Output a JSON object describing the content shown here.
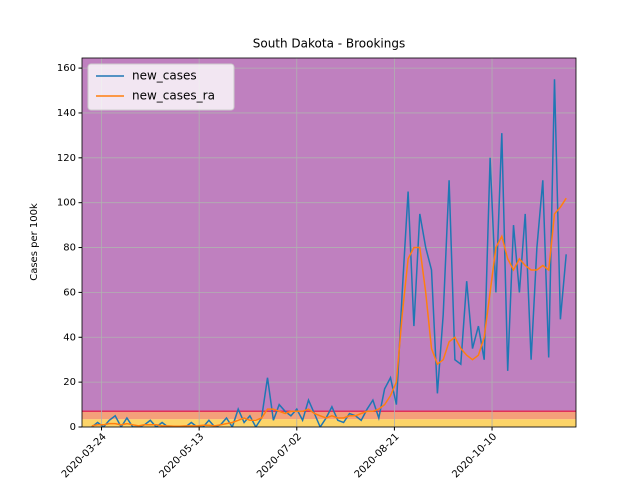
{
  "chart_data": {
    "type": "line",
    "title": "South Dakota - Brookings",
    "ylabel": "Cases per 100k",
    "x": [
      "2020-03-19",
      "2020-03-22",
      "2020-03-25",
      "2020-03-28",
      "2020-03-31",
      "2020-04-03",
      "2020-04-06",
      "2020-04-09",
      "2020-04-12",
      "2020-04-15",
      "2020-04-18",
      "2020-04-21",
      "2020-04-24",
      "2020-04-27",
      "2020-04-30",
      "2020-05-03",
      "2020-05-06",
      "2020-05-09",
      "2020-05-12",
      "2020-05-15",
      "2020-05-18",
      "2020-05-21",
      "2020-05-24",
      "2020-05-27",
      "2020-05-30",
      "2020-06-02",
      "2020-06-05",
      "2020-06-08",
      "2020-06-11",
      "2020-06-14",
      "2020-06-17",
      "2020-06-20",
      "2020-06-23",
      "2020-06-26",
      "2020-06-29",
      "2020-07-02",
      "2020-07-05",
      "2020-07-08",
      "2020-07-11",
      "2020-07-14",
      "2020-07-17",
      "2020-07-20",
      "2020-07-23",
      "2020-07-26",
      "2020-07-29",
      "2020-08-01",
      "2020-08-04",
      "2020-08-07",
      "2020-08-10",
      "2020-08-13",
      "2020-08-16",
      "2020-08-19",
      "2020-08-22",
      "2020-08-25",
      "2020-08-28",
      "2020-08-31",
      "2020-09-03",
      "2020-09-06",
      "2020-09-09",
      "2020-09-12",
      "2020-09-15",
      "2020-09-18",
      "2020-09-21",
      "2020-09-24",
      "2020-09-27",
      "2020-09-30",
      "2020-10-03",
      "2020-10-06",
      "2020-10-09",
      "2020-10-12",
      "2020-10-15",
      "2020-10-18",
      "2020-10-21",
      "2020-10-24",
      "2020-10-27",
      "2020-10-30",
      "2020-11-02",
      "2020-11-05",
      "2020-11-08",
      "2020-11-11",
      "2020-11-14",
      "2020-11-17"
    ],
    "series": [
      {
        "name": "new_cases",
        "color": "#1f77b4",
        "values": [
          0,
          2,
          0,
          3,
          5,
          0,
          4,
          0,
          0,
          1,
          3,
          0,
          2,
          0,
          0,
          0,
          0,
          2,
          0,
          0,
          3,
          0,
          1,
          4,
          0,
          8,
          2,
          5,
          0,
          4,
          22,
          3,
          10,
          7,
          5,
          8,
          3,
          12,
          6,
          0,
          4,
          9,
          3,
          2,
          6,
          5,
          3,
          8,
          12,
          4,
          17,
          22,
          10,
          60,
          105,
          45,
          95,
          80,
          70,
          15,
          50,
          110,
          30,
          28,
          65,
          35,
          45,
          30,
          120,
          60,
          131,
          25,
          90,
          60,
          95,
          30,
          80,
          110,
          31,
          155,
          48,
          77
        ]
      },
      {
        "name": "new_cases_ra",
        "color": "#ff7f0e",
        "values": [
          0.5,
          1,
          1,
          1.5,
          1.5,
          1,
          1.5,
          1,
          0.5,
          1,
          1,
          1,
          0.5,
          0.5,
          0.3,
          0.3,
          0.5,
          0.5,
          0.5,
          0.8,
          0.8,
          0.5,
          1,
          1.5,
          2,
          3,
          4,
          3,
          3,
          4,
          8,
          8,
          7,
          6,
          7,
          7,
          7,
          8,
          6,
          5,
          4,
          5,
          4,
          4,
          5,
          5,
          6,
          7,
          7,
          8,
          10,
          14,
          20,
          50,
          75,
          80,
          80,
          60,
          35,
          28,
          30,
          38,
          40,
          35,
          32,
          30,
          32,
          40,
          60,
          80,
          85,
          75,
          70,
          75,
          72,
          70,
          70,
          72,
          70,
          95,
          98,
          102
        ]
      }
    ],
    "xlim": [
      "2020-03-14",
      "2020-11-22"
    ],
    "xticks": [
      "2020-03-24",
      "2020-05-13",
      "2020-07-02",
      "2020-08-21",
      "2020-10-10"
    ],
    "ylim": [
      0,
      164.5
    ],
    "yticks": [
      0,
      20,
      40,
      60,
      80,
      100,
      120,
      140,
      160
    ],
    "bands": [
      {
        "from": 0,
        "to": 3.5,
        "color": "#fcd468"
      },
      {
        "from": 3.5,
        "to": 7,
        "color": "#f4a07a"
      },
      {
        "from": 7,
        "to": 164.5,
        "color": "#bf80bf"
      }
    ],
    "threshold": {
      "value": 7,
      "color": "#e0305a"
    },
    "grid": true,
    "legend": "upper left"
  }
}
